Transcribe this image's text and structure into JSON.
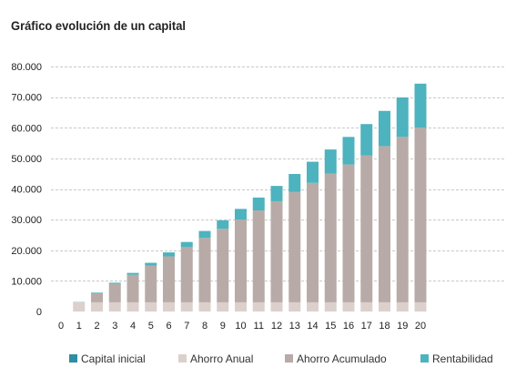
{
  "chart_data": {
    "type": "bar",
    "stacked": true,
    "title": "Gráfico evolución de un capital",
    "categories": [
      "0",
      "1",
      "2",
      "3",
      "4",
      "5",
      "6",
      "7",
      "8",
      "9",
      "10",
      "11",
      "12",
      "13",
      "14",
      "15",
      "16",
      "17",
      "18",
      "19",
      "20"
    ],
    "series": [
      {
        "name": "Capital inicial",
        "color": "#2f8ea1",
        "values": [
          0,
          0,
          0,
          0,
          0,
          0,
          0,
          0,
          0,
          0,
          0,
          0,
          0,
          0,
          0,
          0,
          0,
          0,
          0,
          0,
          0
        ]
      },
      {
        "name": "Ahorro Anual",
        "color": "#dcd0cd",
        "values": [
          0,
          3000,
          3000,
          3000,
          3000,
          3000,
          3000,
          3000,
          3000,
          3000,
          3000,
          3000,
          3000,
          3000,
          3000,
          3000,
          3000,
          3000,
          3000,
          3000,
          3000
        ]
      },
      {
        "name": "Ahorro Acumulado",
        "color": "#b8aba7",
        "values": [
          0,
          0,
          3000,
          6000,
          9000,
          12000,
          15000,
          18000,
          21000,
          24000,
          27000,
          30000,
          33000,
          36000,
          39000,
          42000,
          45000,
          48000,
          51000,
          54000,
          57000
        ]
      },
      {
        "name": "Rentabilidad",
        "color": "#4db3be",
        "values": [
          0,
          100,
          200,
          400,
          600,
          900,
          1300,
          1700,
          2300,
          2800,
          3500,
          4200,
          5000,
          5900,
          6900,
          7900,
          9000,
          10200,
          11500,
          12900,
          14400
        ]
      }
    ],
    "ylim": [
      0,
      80000
    ],
    "yticks": [
      0,
      10000,
      20000,
      30000,
      40000,
      50000,
      60000,
      70000,
      80000
    ],
    "ytick_labels": [
      "0",
      "10.000",
      "20.000",
      "30.000",
      "40.000",
      "50.000",
      "60.000",
      "70.000",
      "80.000"
    ],
    "grid": true,
    "legend": "bottom"
  }
}
